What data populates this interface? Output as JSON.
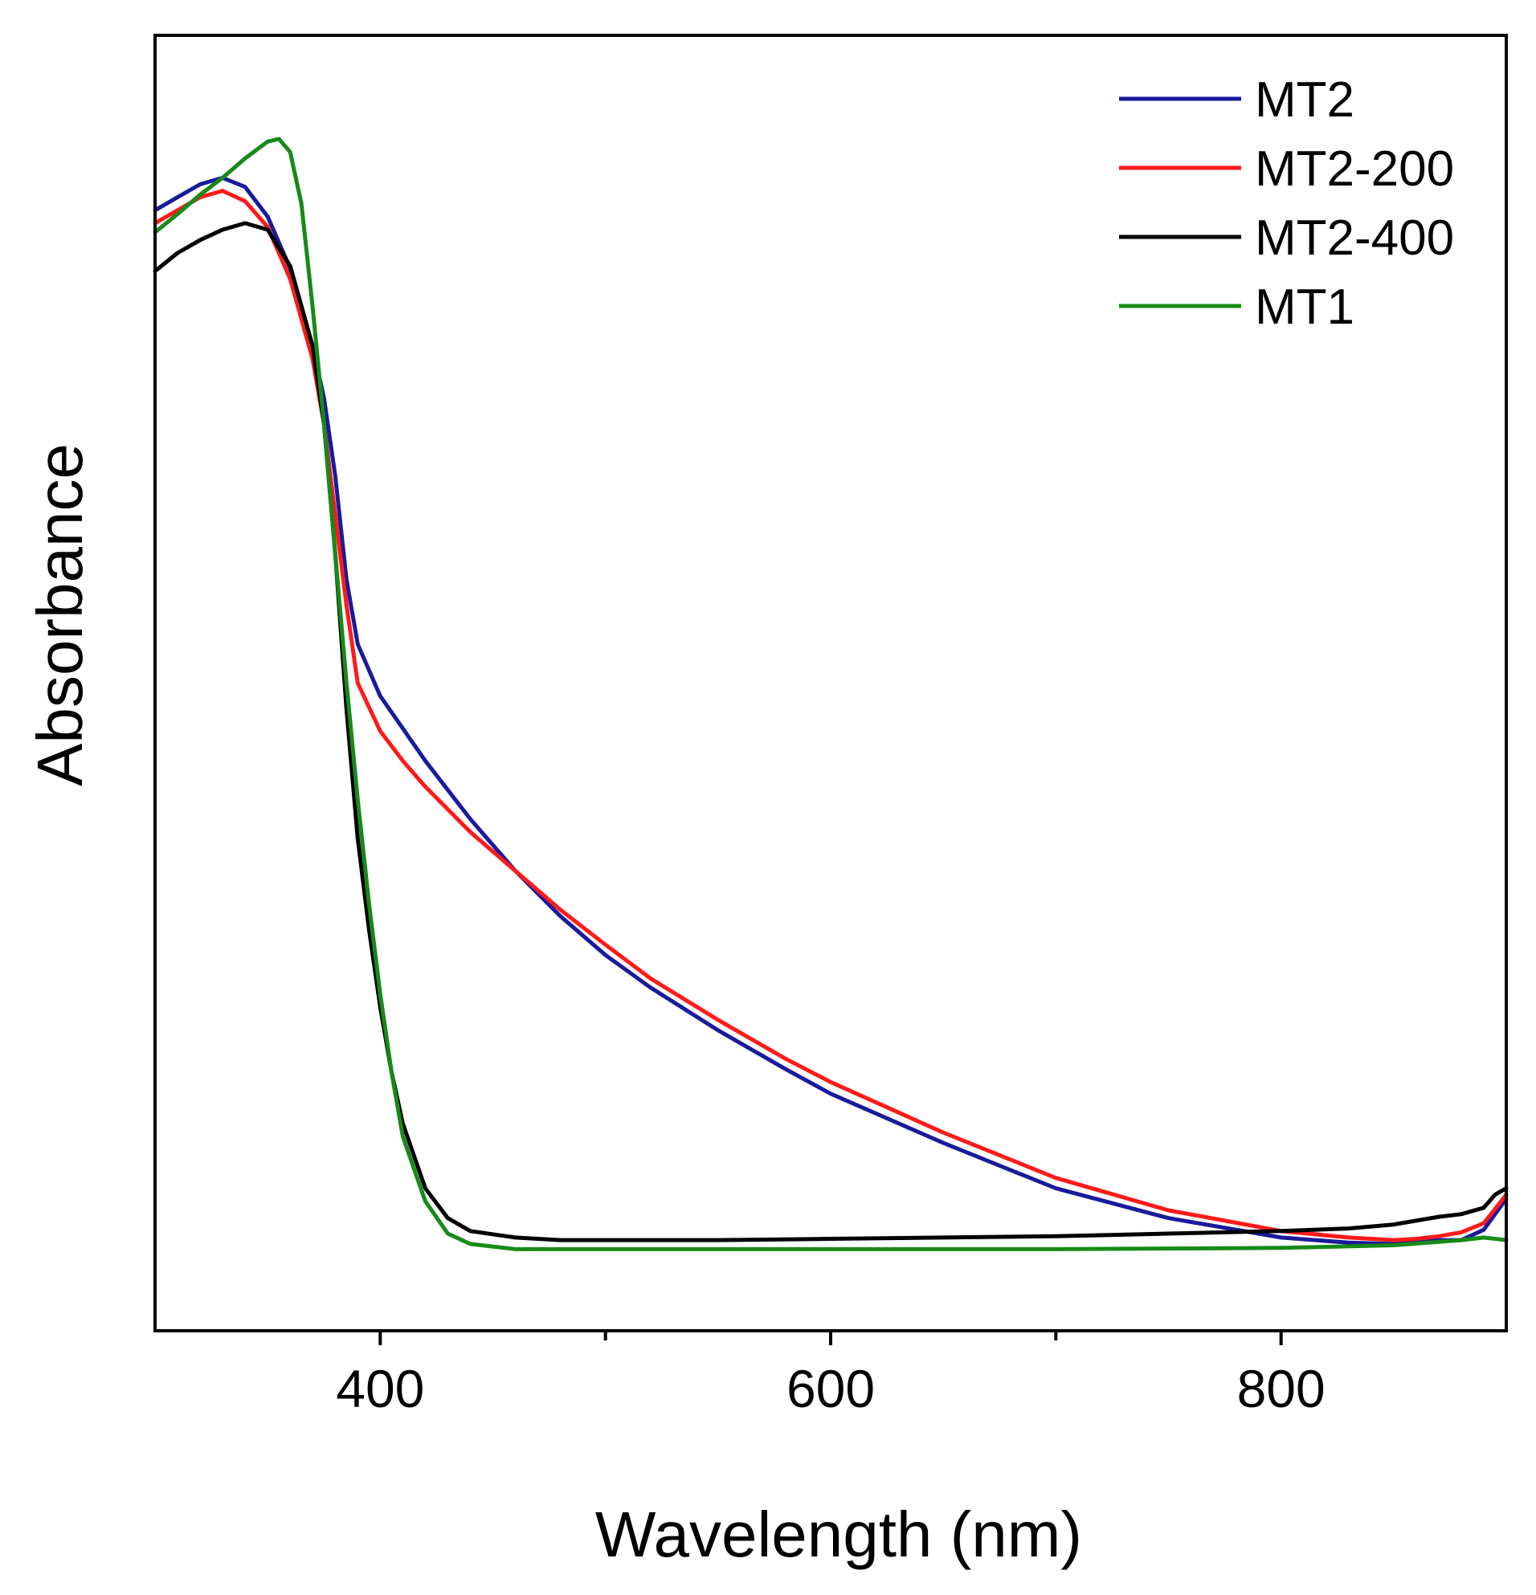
{
  "chart_data": {
    "type": "line",
    "title": "",
    "xlabel": "Wavelength (nm)",
    "ylabel": "Absorbance",
    "xlim": [
      300,
      900
    ],
    "ylim": [
      0,
      1.0
    ],
    "xticks": [
      400,
      600,
      800
    ],
    "xminor_ticks": [
      500,
      700
    ],
    "yticks_visible": false,
    "grid": false,
    "legend_position": "top-right",
    "series": [
      {
        "name": "MT2",
        "color": "#1a1a9c",
        "x": [
          300,
          310,
          320,
          330,
          340,
          350,
          360,
          370,
          375,
          380,
          385,
          390,
          400,
          410,
          420,
          440,
          460,
          480,
          500,
          520,
          550,
          580,
          600,
          650,
          700,
          750,
          800,
          830,
          850,
          860,
          870,
          880,
          890,
          895,
          900
        ],
        "y": [
          0.865,
          0.875,
          0.885,
          0.89,
          0.883,
          0.86,
          0.82,
          0.76,
          0.72,
          0.66,
          0.58,
          0.53,
          0.49,
          0.465,
          0.44,
          0.395,
          0.355,
          0.32,
          0.29,
          0.265,
          0.232,
          0.202,
          0.183,
          0.145,
          0.11,
          0.087,
          0.072,
          0.068,
          0.067,
          0.068,
          0.07,
          0.07,
          0.078,
          0.09,
          0.102
        ]
      },
      {
        "name": "MT2-200",
        "color": "#ff1a1a",
        "x": [
          300,
          310,
          320,
          330,
          340,
          350,
          360,
          370,
          375,
          380,
          385,
          390,
          400,
          410,
          420,
          440,
          460,
          480,
          500,
          520,
          550,
          580,
          600,
          650,
          700,
          750,
          800,
          830,
          850,
          860,
          870,
          880,
          890,
          895,
          900
        ],
        "y": [
          0.855,
          0.865,
          0.875,
          0.88,
          0.872,
          0.852,
          0.812,
          0.75,
          0.7,
          0.63,
          0.56,
          0.5,
          0.463,
          0.44,
          0.42,
          0.385,
          0.355,
          0.325,
          0.298,
          0.272,
          0.24,
          0.21,
          0.192,
          0.153,
          0.118,
          0.093,
          0.077,
          0.072,
          0.07,
          0.071,
          0.073,
          0.076,
          0.083,
          0.094,
          0.105
        ]
      },
      {
        "name": "MT2-400",
        "color": "#000000",
        "x": [
          300,
          310,
          320,
          330,
          340,
          350,
          360,
          370,
          375,
          380,
          385,
          390,
          395,
          400,
          405,
          410,
          420,
          430,
          440,
          460,
          480,
          500,
          550,
          600,
          650,
          700,
          750,
          800,
          830,
          850,
          860,
          870,
          880,
          890,
          895,
          900
        ],
        "y": [
          0.818,
          0.832,
          0.842,
          0.85,
          0.855,
          0.85,
          0.822,
          0.76,
          0.7,
          0.6,
          0.48,
          0.38,
          0.31,
          0.25,
          0.2,
          0.16,
          0.11,
          0.087,
          0.077,
          0.072,
          0.07,
          0.07,
          0.07,
          0.071,
          0.072,
          0.073,
          0.075,
          0.077,
          0.079,
          0.082,
          0.085,
          0.088,
          0.09,
          0.095,
          0.105,
          0.11
        ]
      },
      {
        "name": "MT1",
        "color": "#178a17",
        "x": [
          300,
          310,
          320,
          330,
          340,
          350,
          355,
          360,
          365,
          370,
          375,
          380,
          385,
          390,
          395,
          400,
          405,
          410,
          420,
          430,
          440,
          460,
          500,
          600,
          700,
          800,
          850,
          880,
          890,
          900
        ],
        "y": [
          0.848,
          0.862,
          0.877,
          0.89,
          0.905,
          0.918,
          0.92,
          0.91,
          0.87,
          0.79,
          0.7,
          0.6,
          0.5,
          0.41,
          0.33,
          0.26,
          0.2,
          0.15,
          0.1,
          0.075,
          0.067,
          0.063,
          0.063,
          0.063,
          0.063,
          0.064,
          0.066,
          0.07,
          0.072,
          0.07
        ]
      }
    ]
  }
}
